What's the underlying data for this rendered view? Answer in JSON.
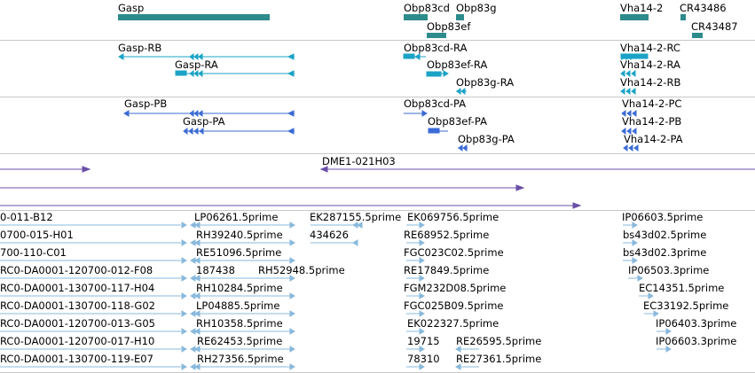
{
  "colors": {
    "gene": "#2e8b8b",
    "rna": "#1ba3c6",
    "protein": "#3b6bd6",
    "cdna": "#6b4fa8",
    "est": "#88b8dc",
    "separator": "#c8c8c8"
  },
  "tracks": {
    "genes": {
      "features": [
        {
          "id": "Gasp",
          "label": "Gasp"
        },
        {
          "id": "Obp83cd",
          "label": "Obp83cd"
        },
        {
          "id": "Obp83g",
          "label": "Obp83g"
        },
        {
          "id": "Obp83ef",
          "label": "Obp83ef"
        },
        {
          "id": "Vha14-2",
          "label": "Vha14-2"
        },
        {
          "id": "CR43486",
          "label": "CR43486"
        },
        {
          "id": "CR43487",
          "label": "CR43487"
        }
      ]
    },
    "transcripts": {
      "features": [
        {
          "label": "Gasp-RB"
        },
        {
          "label": "Gasp-RA"
        },
        {
          "label": "Obp83cd-RA"
        },
        {
          "label": "Obp83ef-RA"
        },
        {
          "label": "Obp83g-RA"
        },
        {
          "label": "Vha14-2-RC"
        },
        {
          "label": "Vha14-2-RA"
        },
        {
          "label": "Vha14-2-RB"
        }
      ]
    },
    "proteins": {
      "features": [
        {
          "label": "Gasp-PB"
        },
        {
          "label": "Gasp-PA"
        },
        {
          "label": "Obp83cd-PA"
        },
        {
          "label": "Obp83ef-PA"
        },
        {
          "label": "Obp83g-PA"
        },
        {
          "label": "Vha14-2-PC"
        },
        {
          "label": "Vha14-2-PB"
        },
        {
          "label": "Vha14-2-PA"
        }
      ]
    },
    "cdna": {
      "features": [
        {
          "label": "DME1-021H03"
        }
      ]
    },
    "ests": {
      "features": [
        {
          "label": "0-011-B12"
        },
        {
          "label": "0700-015-H01"
        },
        {
          "label": "700-110-C01"
        },
        {
          "label": "RC0-DA0001-120700-012-F08"
        },
        {
          "label": "RC0-DA0001-130700-117-H04"
        },
        {
          "label": "RC0-DA0001-130700-118-G02"
        },
        {
          "label": "RC0-DA0001-120700-013-G05"
        },
        {
          "label": "RC0-DA0001-120700-017-H10"
        },
        {
          "label": "RC0-DA0001-130700-119-E07"
        },
        {
          "label": "LP06261.5prime"
        },
        {
          "label": "RH39240.5prime"
        },
        {
          "label": "RE51096.5prime"
        },
        {
          "label": "187438"
        },
        {
          "label": "RH52948.5prime"
        },
        {
          "label": "RH10284.5prime"
        },
        {
          "label": "LP04885.5prime"
        },
        {
          "label": "RH10358.5prime"
        },
        {
          "label": "RE62453.5prime"
        },
        {
          "label": "RH27356.5prime"
        },
        {
          "label": "EK287155.5prime"
        },
        {
          "label": "434626"
        },
        {
          "label": "EK069756.5prime"
        },
        {
          "label": "RE68952.5prime"
        },
        {
          "label": "FGC023C02.5prime"
        },
        {
          "label": "RE17849.5prime"
        },
        {
          "label": "FGM232D08.5prime"
        },
        {
          "label": "FGC025B09.5prime"
        },
        {
          "label": "EK022327.5prime"
        },
        {
          "label": "19715"
        },
        {
          "label": "RE26595.5prime"
        },
        {
          "label": "78310"
        },
        {
          "label": "RE27361.5prime"
        },
        {
          "label": "IP06603.5prime"
        },
        {
          "label": "bs43d02.5prime"
        },
        {
          "label": "bs43d02.3prime"
        },
        {
          "label": "IP06503.3prime"
        },
        {
          "label": "EC14351.5prime"
        },
        {
          "label": "EC33192.5prime"
        },
        {
          "label": "IP06403.3prime"
        },
        {
          "label": "IP06603.3prime"
        }
      ]
    }
  }
}
